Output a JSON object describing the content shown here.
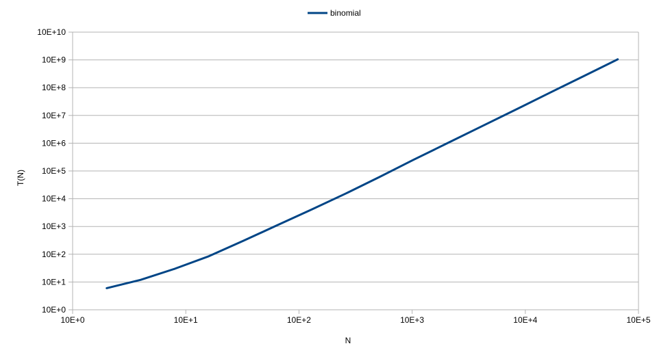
{
  "chart_data": {
    "type": "line",
    "xlabel": "N",
    "ylabel": "T(N)",
    "x_scale": "log",
    "y_scale": "log",
    "xlim": [
      1,
      100000
    ],
    "ylim": [
      1,
      10000000000
    ],
    "grid": "horizontal",
    "legend_position": "top-center",
    "x_ticks": [
      {
        "value": 1,
        "label": "10E+0"
      },
      {
        "value": 10,
        "label": "10E+1"
      },
      {
        "value": 100,
        "label": "10E+2"
      },
      {
        "value": 1000,
        "label": "10E+3"
      },
      {
        "value": 10000,
        "label": "10E+4"
      },
      {
        "value": 100000,
        "label": "10E+5"
      }
    ],
    "y_ticks": [
      {
        "value": 1,
        "label": "10E+0"
      },
      {
        "value": 10,
        "label": "10E+1"
      },
      {
        "value": 100,
        "label": "10E+2"
      },
      {
        "value": 1000,
        "label": "10E+3"
      },
      {
        "value": 10000,
        "label": "10E+4"
      },
      {
        "value": 100000,
        "label": "10E+5"
      },
      {
        "value": 1000000,
        "label": "10E+6"
      },
      {
        "value": 10000000,
        "label": "10E+7"
      },
      {
        "value": 100000000,
        "label": "10E+8"
      },
      {
        "value": 1000000000,
        "label": "10E+9"
      },
      {
        "value": 10000000000,
        "label": "10E+10"
      }
    ],
    "series": [
      {
        "name": "binomial",
        "color": "#004586",
        "x": [
          2,
          4,
          8,
          16,
          32,
          64,
          128,
          256,
          512,
          1024,
          2048,
          4096,
          8192,
          16384,
          32768,
          65536
        ],
        "y": [
          6,
          12,
          30,
          85,
          300,
          1100,
          4000,
          15000,
          60000,
          250000,
          1000000,
          4000000,
          16000000,
          65000000,
          260000000,
          1050000000
        ]
      }
    ]
  }
}
